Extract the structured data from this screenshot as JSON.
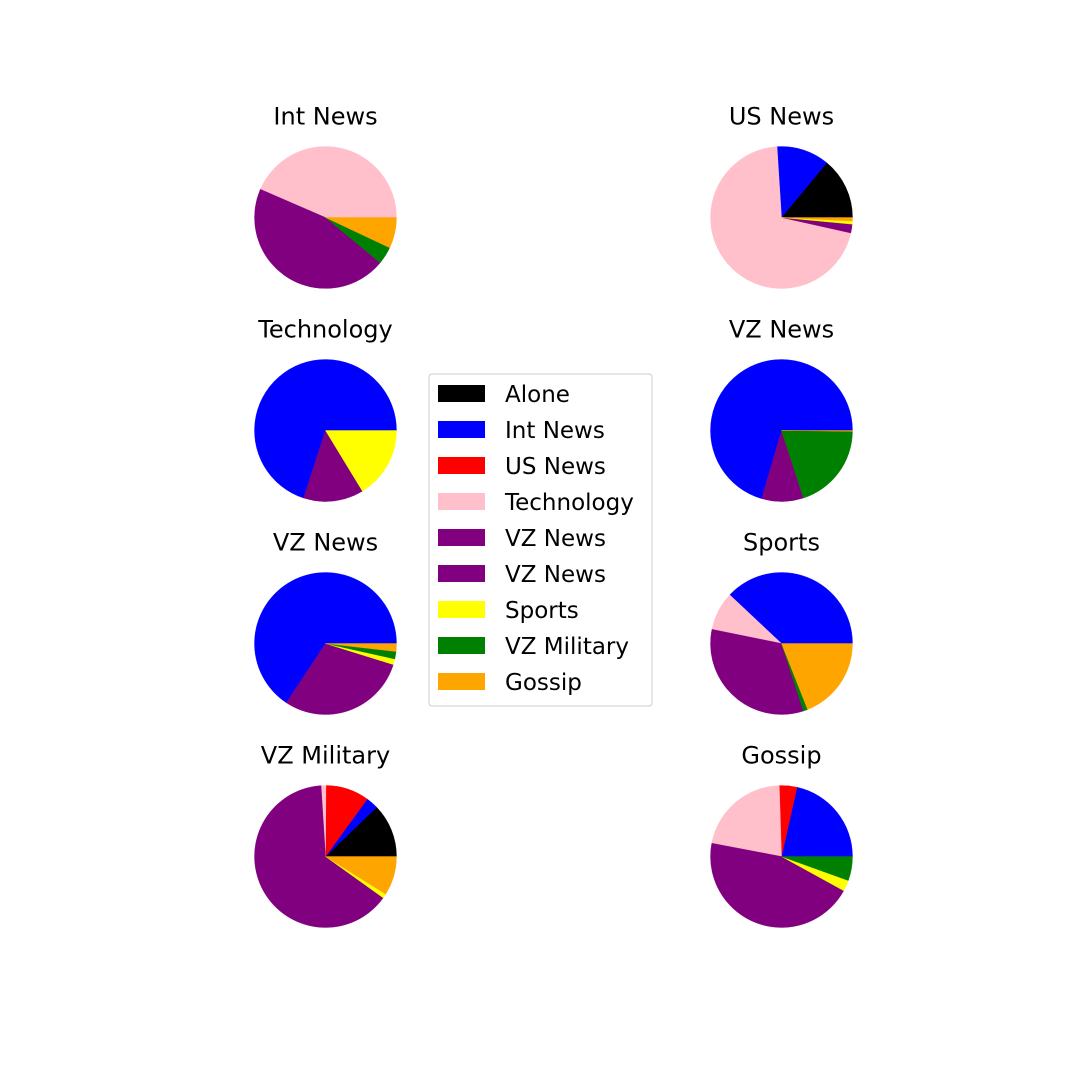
{
  "chart_data": {
    "type": "pie",
    "legend": {
      "placement": "center",
      "entries": [
        {
          "label": "Alone",
          "color": "#000000"
        },
        {
          "label": "Int News",
          "color": "#0000ff"
        },
        {
          "label": "US News",
          "color": "#ff0000"
        },
        {
          "label": "Technology",
          "color": "#ffc0cb"
        },
        {
          "label": "VZ News",
          "color": "#800080"
        },
        {
          "label": "VZ News",
          "color": "#800080"
        },
        {
          "label": "Sports",
          "color": "#ffff00"
        },
        {
          "label": "VZ Military",
          "color": "#008000"
        },
        {
          "label": "Gossip",
          "color": "#ffa500"
        }
      ]
    },
    "pies": [
      {
        "title": "Int News",
        "slices": [
          {
            "label": "Technology",
            "value": 43.5,
            "color": "#ffc0cb"
          },
          {
            "label": "VZ News",
            "value": 34.5,
            "color": "#800080"
          },
          {
            "label": "VZ News",
            "value": 11.0,
            "color": "#800080"
          },
          {
            "label": "VZ Military",
            "value": 4.0,
            "color": "#008000"
          },
          {
            "label": "Gossip",
            "value": 7.0,
            "color": "#ffa500"
          }
        ]
      },
      {
        "title": "US News",
        "slices": [
          {
            "label": "Alone",
            "value": 14.0,
            "color": "#000000"
          },
          {
            "label": "Int News",
            "value": 12.0,
            "color": "#0000ff"
          },
          {
            "label": "Technology",
            "value": 70.5,
            "color": "#ffc0cb"
          },
          {
            "label": "VZ News",
            "value": 2.0,
            "color": "#800080"
          },
          {
            "label": "Sports",
            "value": 0.7,
            "color": "#ffff00"
          },
          {
            "label": "Gossip",
            "value": 0.8,
            "color": "#ffa500"
          }
        ]
      },
      {
        "title": "Technology",
        "slices": [
          {
            "label": "Int News",
            "value": 70.0,
            "color": "#0000ff"
          },
          {
            "label": "VZ News",
            "value": 9.5,
            "color": "#800080"
          },
          {
            "label": "VZ News",
            "value": 4.2,
            "color": "#800080"
          },
          {
            "label": "Sports",
            "value": 16.3,
            "color": "#ffff00"
          }
        ]
      },
      {
        "title": "VZ News",
        "slices": [
          {
            "label": "Int News",
            "value": 70.5,
            "color": "#0000ff"
          },
          {
            "label": "VZ News",
            "value": 9.5,
            "color": "#800080"
          },
          {
            "label": "VZ Military",
            "value": 19.8,
            "color": "#008000"
          },
          {
            "label": "Gossip",
            "value": 0.2,
            "color": "#ffa500"
          }
        ]
      },
      {
        "title": "VZ News",
        "slices": [
          {
            "label": "Int News",
            "value": 65.7,
            "color": "#0000ff"
          },
          {
            "label": "VZ News",
            "value": 29.5,
            "color": "#800080"
          },
          {
            "label": "Sports",
            "value": 1.3,
            "color": "#ffff00"
          },
          {
            "label": "VZ Military",
            "value": 1.7,
            "color": "#008000"
          },
          {
            "label": "Gossip",
            "value": 1.8,
            "color": "#ffa500"
          }
        ]
      },
      {
        "title": "Sports",
        "slices": [
          {
            "label": "Int News",
            "value": 38.0,
            "color": "#0000ff"
          },
          {
            "label": "Technology",
            "value": 8.8,
            "color": "#ffc0cb"
          },
          {
            "label": "VZ News",
            "value": 28.2,
            "color": "#800080"
          },
          {
            "label": "VZ News",
            "value": 5.0,
            "color": "#800080"
          },
          {
            "label": "VZ Military",
            "value": 1.0,
            "color": "#008000"
          },
          {
            "label": "Gossip",
            "value": 19.0,
            "color": "#ffa500"
          }
        ]
      },
      {
        "title": "VZ Military",
        "slices": [
          {
            "label": "Alone",
            "value": 12.2,
            "color": "#000000"
          },
          {
            "label": "Int News",
            "value": 2.8,
            "color": "#0000ff"
          },
          {
            "label": "US News",
            "value": 9.9,
            "color": "#ff0000"
          },
          {
            "label": "Technology",
            "value": 1.1,
            "color": "#ffc0cb"
          },
          {
            "label": "VZ News",
            "value": 57.9,
            "color": "#800080"
          },
          {
            "label": "VZ News",
            "value": 6.2,
            "color": "#800080"
          },
          {
            "label": "Sports",
            "value": 1.0,
            "color": "#ffff00"
          },
          {
            "label": "Gossip",
            "value": 8.9,
            "color": "#ffa500"
          }
        ]
      },
      {
        "title": "Gossip",
        "slices": [
          {
            "label": "Int News",
            "value": 21.5,
            "color": "#0000ff"
          },
          {
            "label": "US News",
            "value": 4.0,
            "color": "#ff0000"
          },
          {
            "label": "Technology",
            "value": 21.5,
            "color": "#ffc0cb"
          },
          {
            "label": "VZ News",
            "value": 6.5,
            "color": "#800080"
          },
          {
            "label": "VZ News",
            "value": 38.5,
            "color": "#800080"
          },
          {
            "label": "Sports",
            "value": 2.5,
            "color": "#ffff00"
          },
          {
            "label": "VZ Military",
            "value": 5.5,
            "color": "#008000"
          }
        ]
      }
    ]
  }
}
